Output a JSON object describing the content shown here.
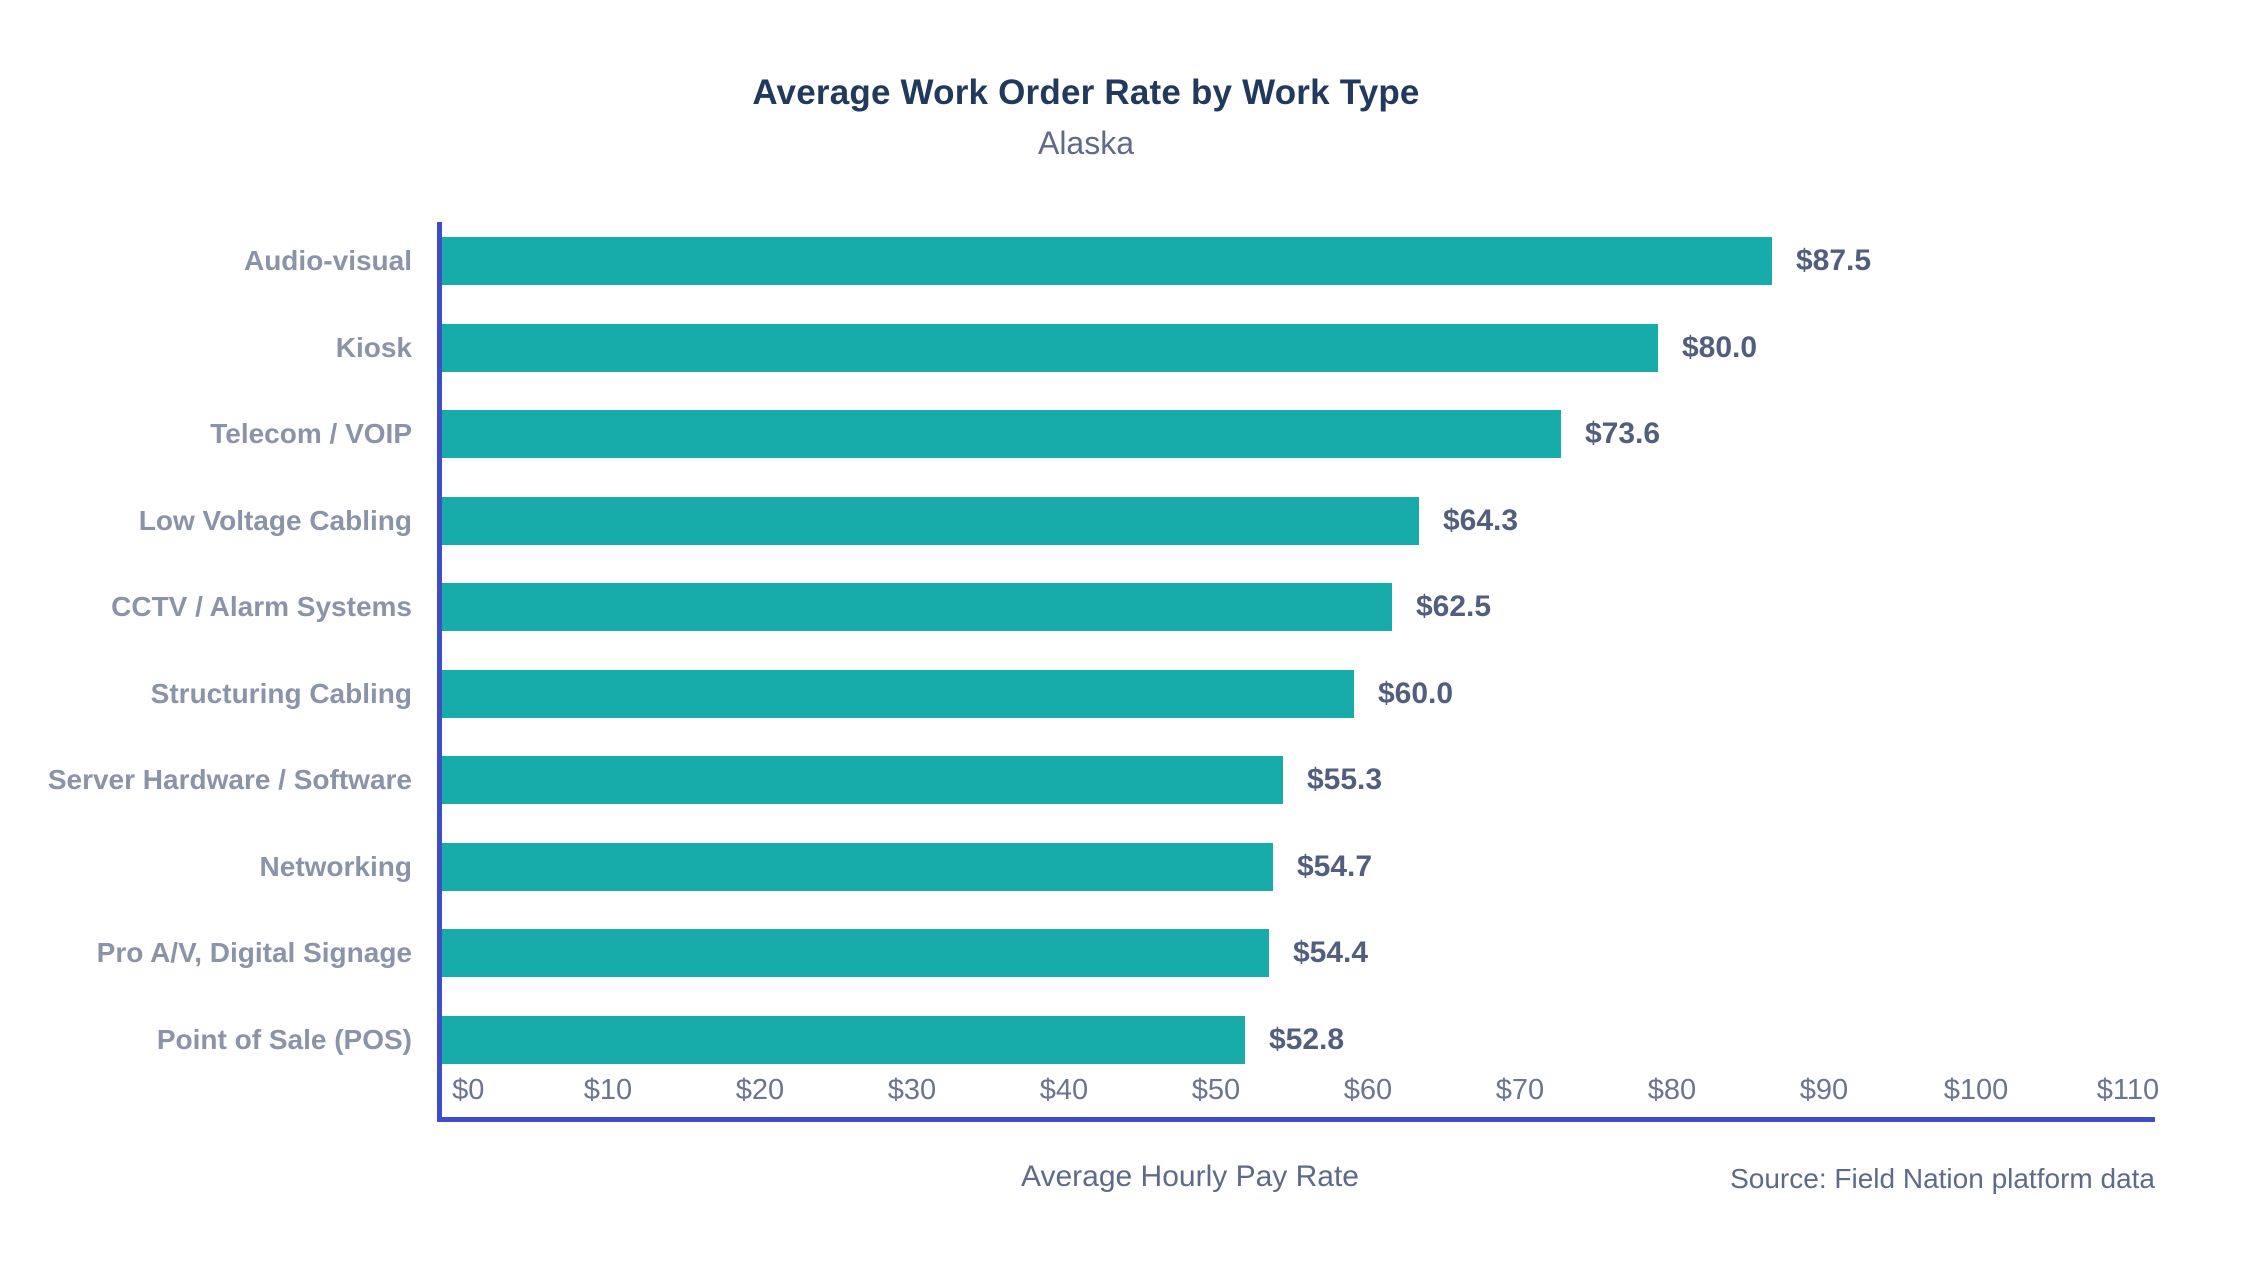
{
  "chart_data": {
    "type": "bar",
    "orientation": "horizontal",
    "title": "Average Work Order Rate by Work Type",
    "subtitle": "Alaska",
    "categories": [
      "Audio-visual",
      "Kiosk",
      "Telecom / VOIP",
      "Low Voltage Cabling",
      "CCTV / Alarm Systems",
      "Structuring Cabling",
      "Server Hardware / Software",
      "Networking",
      "Pro A/V, Digital Signage",
      "Point of Sale (POS)"
    ],
    "values": [
      87.5,
      80.0,
      73.6,
      64.3,
      62.5,
      60.0,
      55.3,
      54.7,
      54.4,
      52.8
    ],
    "value_labels": [
      "$87.5",
      "$80.0",
      "$73.6",
      "$64.3",
      "$62.5",
      "$60.0",
      "$55.3",
      "$54.7",
      "$54.4",
      "$52.8"
    ],
    "xlabel": "Average Hourly Pay Rate",
    "xlim": [
      0,
      112.7
    ],
    "xticks": [
      0,
      10,
      20,
      30,
      40,
      50,
      60,
      70,
      80,
      90,
      100,
      110
    ],
    "xtick_labels": [
      "$0",
      "$10",
      "$20",
      "$30",
      "$40",
      "$50",
      "$60",
      "$70",
      "$80",
      "$90",
      "$100",
      "$110"
    ],
    "grid": false,
    "legend": null,
    "source": "Source: Field Nation platform data",
    "colors": {
      "bar": "#17ABA9",
      "axis": "#3F4DC6",
      "title": "#20395C",
      "subtitle": "#5F6988",
      "category_label": "#8B93A8",
      "value_label": "#515E7D",
      "tick_label": "#6C7491",
      "axis_label": "#5F6A88"
    }
  }
}
